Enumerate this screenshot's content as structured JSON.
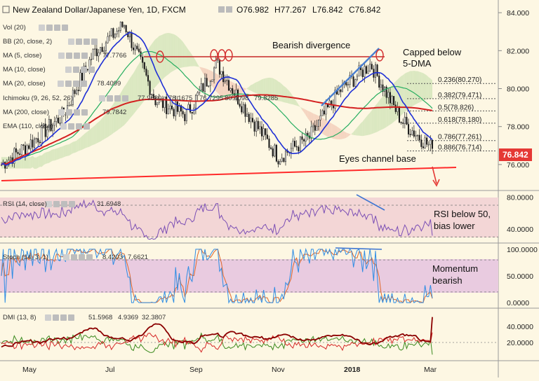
{
  "header": {
    "title": "New Zealand Dollar/Japanese Yen, 1D, FXCM",
    "ohlc": [
      "O76.982",
      "H77.267",
      "L76.842",
      "C76.842"
    ]
  },
  "indicators": {
    "vol": "Vol (20)",
    "bb": "BB (20, close, 2)",
    "ma5": "MA (5, close)",
    "ma5_val": "77.7766",
    "ma10": "MA (10, close)",
    "ma20": "MA (20, close)",
    "ma20_val": "78.4099",
    "ichimoku": "Ichimoku (9, 26, 52, 26)",
    "ichimoku_vals": [
      "77.9680",
      "78.1675",
      "76.7295",
      "80.4098",
      "79.8285"
    ],
    "ma200": "MA (200, close)",
    "ma200_val": "79.7842",
    "ema": "EMA (110, close)"
  },
  "rsi_label": {
    "name": "RSI (14, close)",
    "value": "31.6948"
  },
  "stoch_label": {
    "name": "Stoch (14, 3, 1)",
    "values": [
      "8.4203",
      "7.6621"
    ]
  },
  "dmi_label": {
    "name": "DMI (13, 8)",
    "values": [
      "51.5968",
      "4.9369",
      "32.3807"
    ]
  },
  "annotations": {
    "bearish_div": "Bearish divergence",
    "capped_1": "Capped below",
    "capped_2": "5-DMA",
    "eyes": "Eyes channel base",
    "rsi_1": "RSI below 50,",
    "rsi_2": "bias lower",
    "mom_1": "Momentum",
    "mom_2": "bearish"
  },
  "fib_levels": [
    {
      "label": "0.236(80.270)",
      "price": 80.27
    },
    {
      "label": "0.382(79.471)",
      "price": 79.471
    },
    {
      "label": "0.5(78.826)",
      "price": 78.826
    },
    {
      "label": "0.618(78.180)",
      "price": 78.18
    },
    {
      "label": "0.786(77.261)",
      "price": 77.261
    },
    {
      "label": "0.886(76.714)",
      "price": 76.714
    }
  ],
  "price_tag": "76.842",
  "colors": {
    "background": "#fdf7e3",
    "ma5": "#1e2fd6",
    "ma200": "#d42020",
    "ema": "#27ae60",
    "rsi": "#7b4fb5",
    "rsi_band": "#f3d6d6",
    "stoch_k": "#2f8de4",
    "stoch_d": "#e0672a",
    "stoch_band": "#e9cbe0",
    "dmi_adx": "#8b0000",
    "dmi_plus": "#3b8a1e",
    "dmi_minus": "#d62828",
    "trendline": "#ff2a2a",
    "price_tag": "#e53935"
  },
  "chart_data": [
    {
      "type": "candlestick",
      "title": "New Zealand Dollar/Japanese Yen, 1D, FXCM",
      "x_ticks": [
        "May",
        "Jul",
        "Sep",
        "Nov",
        "2018",
        "Mar"
      ],
      "y_ticks": [
        "84.000",
        "82.000",
        "80.000",
        "78.000",
        "76.000"
      ],
      "ylim": [
        75.0,
        84.3
      ],
      "close_path": [
        {
          "x": "Apr",
          "y": 76.0
        },
        {
          "x": "May",
          "y": 77.2
        },
        {
          "x": "Jun",
          "y": 78.6
        },
        {
          "x": "Jul",
          "y": 81.9
        },
        {
          "x": "Jul-end",
          "y": 83.4
        },
        {
          "x": "Aug",
          "y": 79.4
        },
        {
          "x": "Aug-end",
          "y": 78.6
        },
        {
          "x": "Sep",
          "y": 81.3
        },
        {
          "x": "Oct",
          "y": 78.7
        },
        {
          "x": "Nov",
          "y": 76.4
        },
        {
          "x": "Dec",
          "y": 77.4
        },
        {
          "x": "2018",
          "y": 79.9
        },
        {
          "x": "Feb",
          "y": 81.3
        },
        {
          "x": "Feb-end",
          "y": 78.3
        },
        {
          "x": "Mar",
          "y": 76.84
        }
      ],
      "last_close": 76.842
    },
    {
      "type": "line",
      "title": "RSI (14, close)",
      "y_ticks": [
        "80.0000",
        "40.0000"
      ],
      "ylim": [
        25,
        85
      ],
      "last": 31.6948
    },
    {
      "type": "line",
      "title": "Stoch (14, 3, 1)",
      "y_ticks": [
        "100.0000",
        "50.0000",
        "0.0000"
      ],
      "ylim": [
        -5,
        105
      ],
      "last": [
        8.4203,
        7.6621
      ]
    },
    {
      "type": "line",
      "title": "DMI (13, 8)",
      "y_ticks": [
        "40.0000",
        "20.0000"
      ],
      "ylim": [
        0,
        60
      ],
      "last": [
        51.5968,
        4.9369,
        32.3807
      ]
    }
  ]
}
